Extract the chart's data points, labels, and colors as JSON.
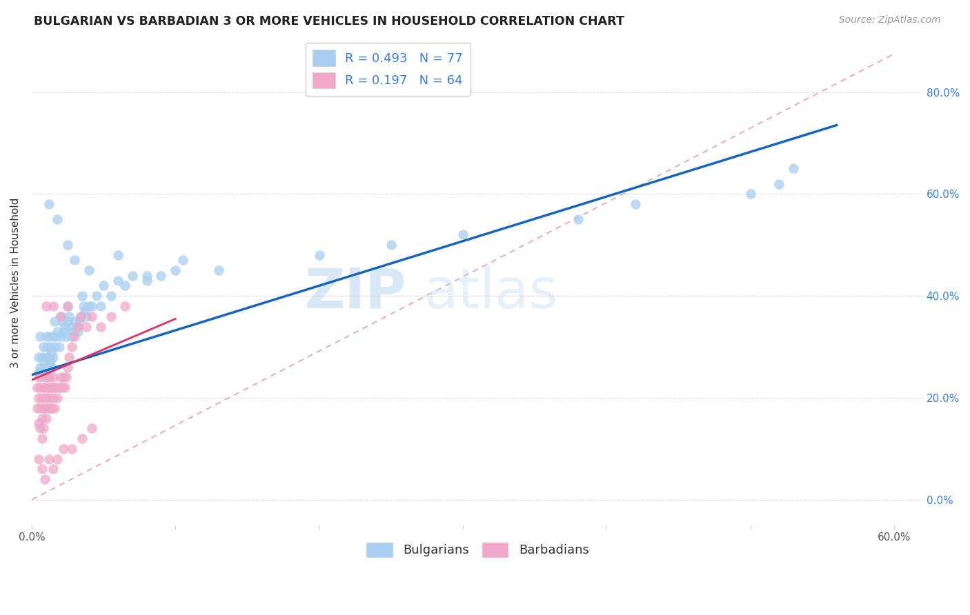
{
  "title": "BULGARIAN VS BARBADIAN 3 OR MORE VEHICLES IN HOUSEHOLD CORRELATION CHART",
  "source": "Source: ZipAtlas.com",
  "ylabel": "3 or more Vehicles in Household",
  "xlim": [
    0.0,
    0.62
  ],
  "ylim": [
    -0.05,
    0.9
  ],
  "xticks": [
    0.0,
    0.1,
    0.2,
    0.3,
    0.4,
    0.5,
    0.6
  ],
  "xticklabels": [
    "0.0%",
    "",
    "",
    "",
    "",
    "",
    "60.0%"
  ],
  "yticks": [
    0.0,
    0.2,
    0.4,
    0.6,
    0.8
  ],
  "yticklabels": [
    "0.0%",
    "20.0%",
    "40.0%",
    "60.0%",
    "80.0%"
  ],
  "bulgarian_color": "#a8cef0",
  "barbadian_color": "#f0a8c8",
  "bulgarian_line_color": "#1565c0",
  "barbadian_line_color": "#e03060",
  "ref_line_color": "#e8a0b0",
  "watermark_zip": "ZIP",
  "watermark_atlas": "atlas",
  "grid_color": "#d8d8e0",
  "bul_line_x0": 0.0,
  "bul_line_y0": 0.245,
  "bul_line_x1": 0.56,
  "bul_line_y1": 0.735,
  "barb_line_x0": 0.0,
  "barb_line_y0": 0.235,
  "barb_line_x1": 0.1,
  "barb_line_y1": 0.355,
  "ref_line_x0": 0.0,
  "ref_line_y0": 0.0,
  "ref_line_x1": 0.6,
  "ref_line_y1": 0.875,
  "bulgarian_x": [
    0.005,
    0.005,
    0.006,
    0.006,
    0.007,
    0.007,
    0.008,
    0.008,
    0.009,
    0.009,
    0.01,
    0.01,
    0.011,
    0.011,
    0.012,
    0.012,
    0.013,
    0.013,
    0.014,
    0.014,
    0.015,
    0.015,
    0.016,
    0.016,
    0.017,
    0.018,
    0.019,
    0.02,
    0.02,
    0.021,
    0.022,
    0.023,
    0.024,
    0.025,
    0.025,
    0.026,
    0.027,
    0.028,
    0.029,
    0.03,
    0.031,
    0.032,
    0.033,
    0.034,
    0.035,
    0.036,
    0.037,
    0.038,
    0.04,
    0.042,
    0.045,
    0.048,
    0.05,
    0.055,
    0.06,
    0.065,
    0.07,
    0.08,
    0.09,
    0.1,
    0.012,
    0.018,
    0.025,
    0.03,
    0.04,
    0.06,
    0.08,
    0.105,
    0.13,
    0.2,
    0.25,
    0.3,
    0.38,
    0.42,
    0.5,
    0.52,
    0.53
  ],
  "bulgarian_y": [
    0.28,
    0.25,
    0.26,
    0.32,
    0.24,
    0.28,
    0.26,
    0.3,
    0.25,
    0.27,
    0.28,
    0.32,
    0.26,
    0.3,
    0.28,
    0.32,
    0.27,
    0.3,
    0.26,
    0.29,
    0.28,
    0.32,
    0.3,
    0.35,
    0.32,
    0.33,
    0.3,
    0.32,
    0.36,
    0.35,
    0.33,
    0.34,
    0.32,
    0.35,
    0.38,
    0.36,
    0.34,
    0.32,
    0.33,
    0.35,
    0.34,
    0.33,
    0.35,
    0.36,
    0.4,
    0.38,
    0.37,
    0.36,
    0.38,
    0.38,
    0.4,
    0.38,
    0.42,
    0.4,
    0.43,
    0.42,
    0.44,
    0.43,
    0.44,
    0.45,
    0.58,
    0.55,
    0.5,
    0.47,
    0.45,
    0.48,
    0.44,
    0.47,
    0.45,
    0.48,
    0.5,
    0.52,
    0.55,
    0.58,
    0.6,
    0.62,
    0.65
  ],
  "barbadian_x": [
    0.004,
    0.004,
    0.005,
    0.005,
    0.005,
    0.006,
    0.006,
    0.006,
    0.007,
    0.007,
    0.007,
    0.008,
    0.008,
    0.008,
    0.009,
    0.009,
    0.01,
    0.01,
    0.01,
    0.011,
    0.011,
    0.012,
    0.012,
    0.013,
    0.013,
    0.014,
    0.014,
    0.015,
    0.015,
    0.016,
    0.016,
    0.017,
    0.018,
    0.019,
    0.02,
    0.021,
    0.022,
    0.023,
    0.024,
    0.025,
    0.026,
    0.028,
    0.03,
    0.032,
    0.034,
    0.038,
    0.042,
    0.048,
    0.055,
    0.065,
    0.005,
    0.007,
    0.009,
    0.012,
    0.015,
    0.018,
    0.022,
    0.028,
    0.035,
    0.042,
    0.01,
    0.015,
    0.02,
    0.025
  ],
  "barbadian_y": [
    0.22,
    0.18,
    0.24,
    0.2,
    0.15,
    0.22,
    0.18,
    0.14,
    0.2,
    0.16,
    0.12,
    0.22,
    0.18,
    0.14,
    0.22,
    0.18,
    0.24,
    0.2,
    0.16,
    0.22,
    0.18,
    0.24,
    0.2,
    0.22,
    0.18,
    0.22,
    0.18,
    0.24,
    0.2,
    0.22,
    0.18,
    0.22,
    0.2,
    0.22,
    0.24,
    0.22,
    0.24,
    0.22,
    0.24,
    0.26,
    0.28,
    0.3,
    0.32,
    0.34,
    0.36,
    0.34,
    0.36,
    0.34,
    0.36,
    0.38,
    0.08,
    0.06,
    0.04,
    0.08,
    0.06,
    0.08,
    0.1,
    0.1,
    0.12,
    0.14,
    0.38,
    0.38,
    0.36,
    0.38
  ]
}
